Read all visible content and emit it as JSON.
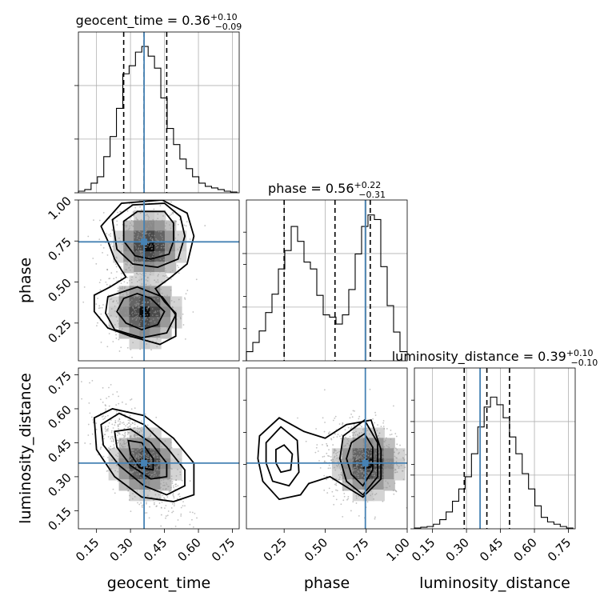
{
  "chart_data": {
    "type": "corner",
    "parameters": [
      "geocent_time",
      "phase",
      "luminosity_distance"
    ],
    "titles": [
      {
        "label": "geocent_time",
        "median": "0.36",
        "plus": "+0.10",
        "minus": "−0.09"
      },
      {
        "label": "phase",
        "median": "0.56",
        "plus": "+0.22",
        "minus": "−0.31"
      },
      {
        "label": "luminosity_distance",
        "median": "0.39",
        "plus": "+0.10",
        "minus": "−0.10"
      }
    ],
    "ranges": [
      [
        0.07,
        0.78
      ],
      [
        0.02,
        1.0
      ],
      [
        0.07,
        0.78
      ]
    ],
    "ticks": [
      [
        "0.15",
        "0.30",
        "0.45",
        "0.60",
        "0.75"
      ],
      [
        "0.25",
        "0.50",
        "0.75",
        "1.00"
      ],
      [
        "0.15",
        "0.30",
        "0.45",
        "0.60",
        "0.75"
      ]
    ],
    "truths": [
      0.36,
      0.745,
      0.36
    ],
    "quantiles": [
      [
        0.27,
        0.36,
        0.46
      ],
      [
        0.25,
        0.56,
        0.775
      ],
      [
        0.29,
        0.39,
        0.49
      ]
    ],
    "hist_edges": [
      [
        0.07,
        0.098,
        0.126,
        0.154,
        0.182,
        0.21,
        0.238,
        0.266,
        0.294,
        0.322,
        0.35,
        0.378,
        0.406,
        0.434,
        0.462,
        0.49,
        0.518,
        0.546,
        0.574,
        0.602,
        0.63,
        0.658,
        0.686,
        0.714,
        0.742,
        0.77
      ],
      [
        0.02,
        0.059,
        0.098,
        0.137,
        0.176,
        0.215,
        0.254,
        0.293,
        0.332,
        0.371,
        0.41,
        0.449,
        0.488,
        0.527,
        0.566,
        0.605,
        0.644,
        0.683,
        0.722,
        0.761,
        0.8,
        0.839,
        0.878,
        0.917,
        0.956,
        1.0
      ],
      [
        0.07,
        0.098,
        0.126,
        0.154,
        0.182,
        0.21,
        0.238,
        0.266,
        0.294,
        0.322,
        0.35,
        0.378,
        0.406,
        0.434,
        0.462,
        0.49,
        0.518,
        0.546,
        0.574,
        0.602,
        0.63,
        0.658,
        0.686,
        0.714,
        0.742,
        0.77
      ]
    ],
    "hist_counts": [
      [
        2,
        4,
        12,
        20,
        45,
        70,
        105,
        148,
        158,
        175,
        182,
        170,
        155,
        118,
        80,
        60,
        42,
        30,
        20,
        12,
        8,
        6,
        4,
        2,
        1
      ],
      [
        8,
        16,
        26,
        42,
        58,
        80,
        96,
        117,
        104,
        86,
        80,
        57,
        40,
        38,
        32,
        40,
        62,
        93,
        117,
        127,
        123,
        82,
        48,
        25,
        8
      ],
      [
        1,
        2,
        3,
        6,
        12,
        22,
        36,
        52,
        68,
        98,
        133,
        159,
        172,
        162,
        145,
        120,
        98,
        72,
        52,
        30,
        15,
        9,
        6,
        3,
        1
      ]
    ],
    "hist_max": [
      200,
      140,
      210
    ],
    "contour_pairs": [
      {
        "x": "geocent_time",
        "y": "phase",
        "contours": [
          [
            [
              0.27,
              0.87
            ],
            [
              0.33,
              0.93
            ],
            [
              0.45,
              0.93
            ],
            [
              0.49,
              0.86
            ],
            [
              0.49,
              0.75
            ],
            [
              0.47,
              0.67
            ],
            [
              0.39,
              0.64
            ],
            [
              0.32,
              0.66
            ],
            [
              0.27,
              0.75
            ]
          ],
          [
            [
              0.22,
              0.88
            ],
            [
              0.31,
              0.97
            ],
            [
              0.45,
              0.98
            ],
            [
              0.52,
              0.9
            ],
            [
              0.54,
              0.78
            ],
            [
              0.51,
              0.64
            ],
            [
              0.42,
              0.59
            ],
            [
              0.31,
              0.61
            ],
            [
              0.24,
              0.7
            ]
          ],
          [
            [
              0.17,
              0.84
            ],
            [
              0.26,
              0.98
            ],
            [
              0.44,
              1.0
            ],
            [
              0.55,
              0.92
            ],
            [
              0.58,
              0.78
            ],
            [
              0.55,
              0.61
            ],
            [
              0.47,
              0.52
            ],
            [
              0.41,
              0.46
            ],
            [
              0.45,
              0.38
            ],
            [
              0.5,
              0.31
            ],
            [
              0.5,
              0.17
            ],
            [
              0.43,
              0.12
            ],
            [
              0.3,
              0.17
            ],
            [
              0.2,
              0.22
            ],
            [
              0.14,
              0.32
            ],
            [
              0.14,
              0.42
            ],
            [
              0.21,
              0.47
            ],
            [
              0.28,
              0.53
            ],
            [
              0.23,
              0.64
            ],
            [
              0.2,
              0.75
            ]
          ],
          [
            [
              0.27,
              0.4
            ],
            [
              0.33,
              0.43
            ],
            [
              0.39,
              0.4
            ],
            [
              0.45,
              0.32
            ],
            [
              0.42,
              0.24
            ],
            [
              0.35,
              0.21
            ],
            [
              0.28,
              0.25
            ],
            [
              0.24,
              0.32
            ]
          ],
          [
            [
              0.2,
              0.41
            ],
            [
              0.33,
              0.47
            ],
            [
              0.44,
              0.41
            ],
            [
              0.5,
              0.3
            ],
            [
              0.46,
              0.19
            ],
            [
              0.35,
              0.16
            ],
            [
              0.23,
              0.21
            ],
            [
              0.19,
              0.31
            ]
          ]
        ],
        "peaks": [
          [
            0.36,
            0.75
          ],
          [
            0.34,
            0.35
          ]
        ]
      },
      {
        "x": "geocent_time",
        "y": "luminosity_distance",
        "contours": [
          [
            [
              0.29,
              0.46
            ],
            [
              0.35,
              0.45
            ],
            [
              0.4,
              0.38
            ],
            [
              0.4,
              0.33
            ],
            [
              0.34,
              0.34
            ],
            [
              0.3,
              0.4
            ]
          ],
          [
            [
              0.23,
              0.5
            ],
            [
              0.3,
              0.51
            ],
            [
              0.39,
              0.45
            ],
            [
              0.46,
              0.36
            ],
            [
              0.46,
              0.3
            ],
            [
              0.39,
              0.29
            ],
            [
              0.3,
              0.35
            ],
            [
              0.24,
              0.43
            ]
          ],
          [
            [
              0.17,
              0.53
            ],
            [
              0.25,
              0.58
            ],
            [
              0.36,
              0.53
            ],
            [
              0.46,
              0.43
            ],
            [
              0.54,
              0.33
            ],
            [
              0.54,
              0.26
            ],
            [
              0.46,
              0.22
            ],
            [
              0.36,
              0.26
            ],
            [
              0.25,
              0.35
            ],
            [
              0.18,
              0.44
            ]
          ],
          [
            [
              0.14,
              0.56
            ],
            [
              0.22,
              0.6
            ],
            [
              0.36,
              0.57
            ],
            [
              0.49,
              0.47
            ],
            [
              0.58,
              0.36
            ],
            [
              0.58,
              0.22
            ],
            [
              0.49,
              0.19
            ],
            [
              0.35,
              0.21
            ],
            [
              0.23,
              0.3
            ],
            [
              0.15,
              0.42
            ]
          ]
        ],
        "peaks": [
          [
            0.34,
            0.38
          ]
        ]
      },
      {
        "x": "phase",
        "y": "luminosity_distance",
        "contours": [
          [
            [
              0.2,
              0.42
            ],
            [
              0.25,
              0.44
            ],
            [
              0.3,
              0.4
            ],
            [
              0.29,
              0.33
            ],
            [
              0.23,
              0.32
            ],
            [
              0.2,
              0.36
            ]
          ],
          [
            [
              0.14,
              0.45
            ],
            [
              0.23,
              0.52
            ],
            [
              0.33,
              0.46
            ],
            [
              0.34,
              0.32
            ],
            [
              0.28,
              0.26
            ],
            [
              0.18,
              0.28
            ],
            [
              0.14,
              0.36
            ]
          ],
          [
            [
              0.1,
              0.48
            ],
            [
              0.22,
              0.56
            ],
            [
              0.37,
              0.5
            ],
            [
              0.5,
              0.47
            ],
            [
              0.63,
              0.53
            ],
            [
              0.78,
              0.55
            ],
            [
              0.84,
              0.42
            ],
            [
              0.84,
              0.29
            ],
            [
              0.73,
              0.21
            ],
            [
              0.64,
              0.25
            ],
            [
              0.53,
              0.3
            ],
            [
              0.4,
              0.27
            ],
            [
              0.35,
              0.22
            ],
            [
              0.22,
              0.2
            ],
            [
              0.12,
              0.28
            ],
            [
              0.09,
              0.38
            ]
          ],
          [
            [
              0.66,
              0.45
            ],
            [
              0.74,
              0.49
            ],
            [
              0.79,
              0.43
            ],
            [
              0.79,
              0.33
            ],
            [
              0.73,
              0.26
            ],
            [
              0.66,
              0.31
            ],
            [
              0.63,
              0.38
            ]
          ],
          [
            [
              0.61,
              0.48
            ],
            [
              0.74,
              0.55
            ],
            [
              0.82,
              0.45
            ],
            [
              0.82,
              0.3
            ],
            [
              0.73,
              0.22
            ],
            [
              0.63,
              0.28
            ],
            [
              0.59,
              0.38
            ]
          ]
        ],
        "peaks": [
          [
            0.73,
            0.38
          ]
        ]
      }
    ],
    "scatter_count_per_panel": 900,
    "colors": {
      "truth": "#4682b4",
      "hist": "#000000",
      "contour": "#000000",
      "scatter": "#9a9a9a",
      "grid": "#b0b0b0"
    },
    "grid": true
  }
}
